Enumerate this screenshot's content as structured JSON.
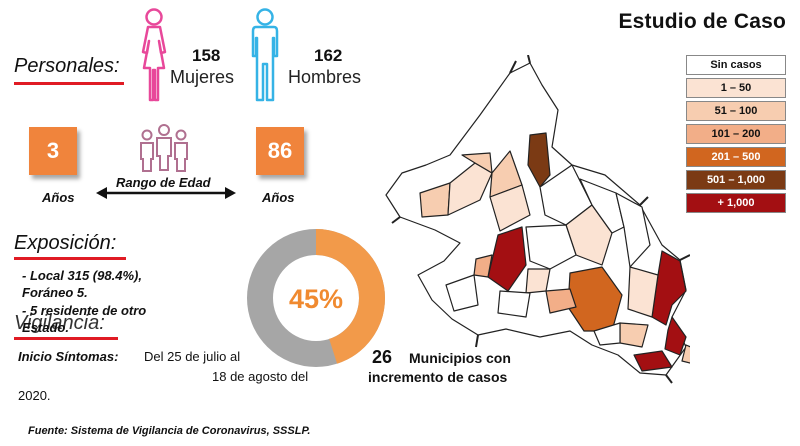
{
  "title": "Estudio de Caso",
  "personales": {
    "heading": "Personales:",
    "women": {
      "count": "158",
      "label": "Mujeres",
      "color": "#e8489a"
    },
    "men": {
      "count": "162",
      "label": "Hombres",
      "color": "#35b3e6"
    }
  },
  "edad": {
    "min": "3",
    "max": "86",
    "unit_min": "Años",
    "unit_max": "Años",
    "range_label": "Rango de Edad",
    "box_color": "#f0843c",
    "icon_color": "#b07090"
  },
  "exposicion": {
    "heading": "Exposición:",
    "lines": [
      "- Local 315 (98.4%),",
      "Foráneo 5.",
      "- 5 residente de otro",
      "Estado."
    ]
  },
  "vigilancia": {
    "heading": "Vigilancia:",
    "inicio_label": "Inicio Síntomas:",
    "inicio_text_1": "Del 25 de julio al",
    "inicio_text_2": "18 de agosto del",
    "inicio_text_3": "2020."
  },
  "donut": {
    "percent_label": "45%",
    "value": 0.45,
    "fill_color": "#f29a4a",
    "rest_color": "#a6a6a6"
  },
  "municipios": {
    "count": "26",
    "text_1": "Municipios con",
    "text_2": "incremento de casos"
  },
  "legend": [
    {
      "label": "Sin casos",
      "color": "#ffffff"
    },
    {
      "label": "1 – 50",
      "color": "#fbe3d3"
    },
    {
      "label": "51 – 100",
      "color": "#f7cdb0"
    },
    {
      "label": "101 – 200",
      "color": "#f2ae88"
    },
    {
      "label": "201 – 500",
      "color": "#d1661f"
    },
    {
      "label": "501 – 1,000",
      "color": "#7b3a14"
    },
    {
      "label": "+ 1,000",
      "color": "#a30f12"
    }
  ],
  "source": "Fuente: Sistema de Vigilancia de Coronavirus, SSSLP."
}
